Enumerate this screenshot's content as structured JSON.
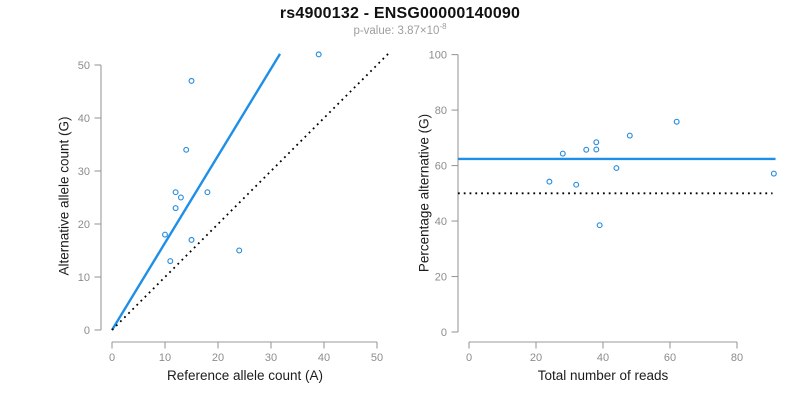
{
  "header": {
    "title": "rs4900132 - ENSG00000140090",
    "subtitle_prefix": "p-value: 3.87×10",
    "subtitle_exponent": "-8"
  },
  "colors": {
    "accent_blue": "#1E8FE8",
    "point_blue": "#2B8EDE",
    "axis_gray": "#9A9A9A",
    "tick_label_gray": "#8C8C8C",
    "dotted_black": "#000000"
  },
  "chart_data": [
    {
      "type": "scatter",
      "name": "allele-counts-scatter",
      "xlabel": "Reference allele count (A)",
      "ylabel": "Alternative allele count (G)",
      "xlim": [
        0,
        50
      ],
      "ylim": [
        0,
        50
      ],
      "xticks": [
        0,
        10,
        20,
        30,
        40,
        50
      ],
      "yticks": [
        0,
        10,
        20,
        30,
        40,
        50
      ],
      "grid": false,
      "points": [
        [
          10,
          18
        ],
        [
          11,
          13
        ],
        [
          12,
          23
        ],
        [
          12,
          26
        ],
        [
          13,
          25
        ],
        [
          14,
          34
        ],
        [
          15,
          17
        ],
        [
          15,
          47
        ],
        [
          18,
          26
        ],
        [
          24,
          15
        ],
        [
          39,
          52
        ]
      ],
      "lines": [
        {
          "name": "fitted-ratio-line",
          "style": "solid",
          "color": "#1E8FE8",
          "from": [
            0,
            0
          ],
          "to": [
            31.7,
            52.1
          ]
        },
        {
          "name": "identity-line",
          "style": "dotted",
          "color": "#000000",
          "from": [
            0,
            0
          ],
          "to": [
            52.2,
            52.2
          ]
        }
      ]
    },
    {
      "type": "scatter",
      "name": "percentage-vs-reads-scatter",
      "xlabel": "Total number of reads",
      "ylabel": "Percentage alternative (G)",
      "xlim": [
        0,
        80
      ],
      "ylim": [
        0,
        100
      ],
      "xticks": [
        0,
        20,
        40,
        60,
        80
      ],
      "yticks": [
        0,
        20,
        40,
        60,
        80,
        100
      ],
      "grid": false,
      "points": [
        [
          24,
          54.2
        ],
        [
          28,
          64.3
        ],
        [
          32,
          53.1
        ],
        [
          35,
          65.7
        ],
        [
          38,
          65.8
        ],
        [
          38,
          68.4
        ],
        [
          39,
          38.5
        ],
        [
          44,
          59.1
        ],
        [
          48,
          70.8
        ],
        [
          62,
          75.8
        ],
        [
          91,
          57.1
        ]
      ],
      "lines": [
        {
          "name": "mean-percentage-line",
          "style": "solid",
          "color": "#1E8FE8",
          "from": [
            -3.3,
            62.4
          ],
          "to": [
            91.5,
            62.4
          ]
        },
        {
          "name": "fifty-percent-line",
          "style": "dotted",
          "color": "#000000",
          "from": [
            -3.3,
            50
          ],
          "to": [
            90.6,
            50
          ]
        }
      ]
    }
  ]
}
